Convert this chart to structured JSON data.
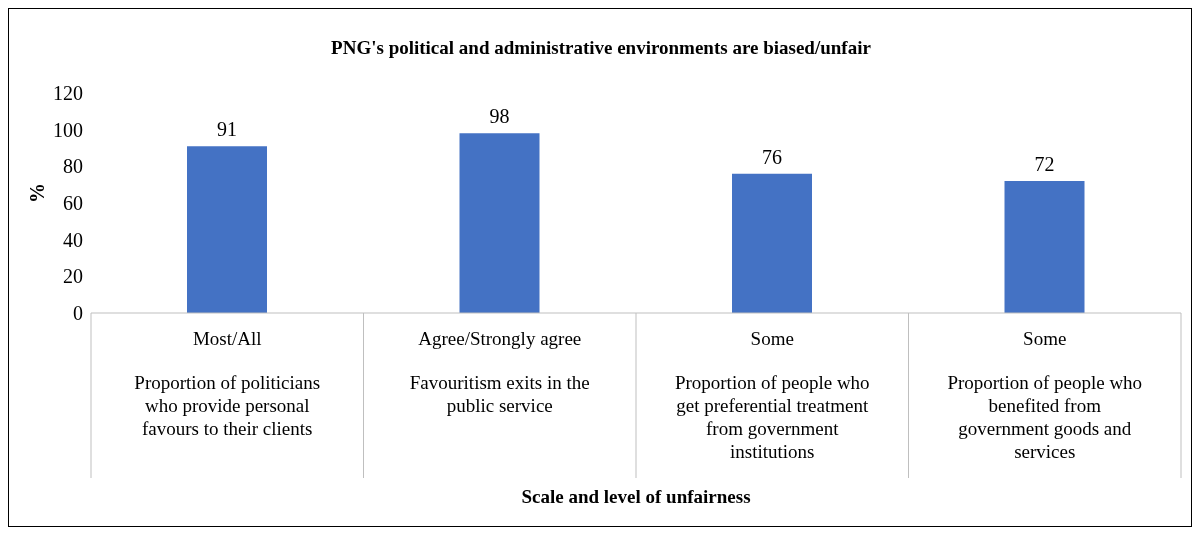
{
  "chart_data": {
    "type": "bar",
    "title": "PNG's political and administrative environments are biased/unfair",
    "annotations": [
      "Scale and level of unfairness"
    ],
    "ylabel": "%",
    "categories": [
      "Most/All\nProportion of politicians\nwho provide personal\nfavours to their clients",
      "Agree/Strongly agree\nFavouritism exits in the\npublic service",
      "Some\nProportion of people who\nget preferential treatment\nfrom government\ninstitutions",
      "Some\nProportion of people who\nbenefited from\ngovernment goods and\nservices"
    ],
    "values": [
      91,
      98,
      76,
      72
    ],
    "color": "#4472c4",
    "ylim": [
      0,
      120
    ],
    "yticks": [
      0,
      20,
      40,
      60,
      80,
      100,
      120
    ],
    "grid": false,
    "data_labels": true,
    "legend": false
  }
}
